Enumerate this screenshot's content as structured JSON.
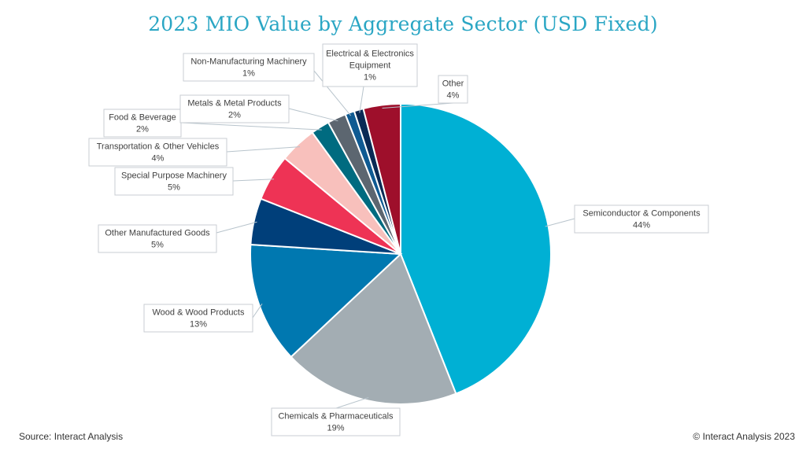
{
  "title": "2023 MIO Value by Aggregate Sector (USD Fixed)",
  "footer": {
    "source": "Source: Interact Analysis",
    "copyright": "© Interact Analysis 2023"
  },
  "chart_data": {
    "type": "pie",
    "start_angle_deg": 0,
    "direction": "clockwise",
    "slices": [
      {
        "name": "Semiconductor & Components",
        "value": 44,
        "label": "44%",
        "color": "#00b0d4"
      },
      {
        "name": "Chemicals & Pharmaceuticals",
        "value": 19,
        "label": "19%",
        "color": "#a3adb3"
      },
      {
        "name": "Wood & Wood Products",
        "value": 13,
        "label": "13%",
        "color": "#0078b0"
      },
      {
        "name": "Other Manufactured Goods",
        "value": 5,
        "label": "5%",
        "color": "#003f7a"
      },
      {
        "name": "Special Purpose Machinery",
        "value": 5,
        "label": "5%",
        "color": "#ee3355"
      },
      {
        "name": "Transportation & Other Vehicles",
        "value": 4,
        "label": "4%",
        "color": "#f8c0bc"
      },
      {
        "name": "Food & Beverage",
        "value": 2,
        "label": "2%",
        "color": "#006b80"
      },
      {
        "name": "Metals & Metal Products",
        "value": 2,
        "label": "2%",
        "color": "#5c6670"
      },
      {
        "name": "Non-Manufacturing Machinery",
        "value": 1,
        "label": "1%",
        "color": "#0f5a92"
      },
      {
        "name": "Electrical & Electronics Equipment",
        "value": 1,
        "label": "1%",
        "color": "#0a2a55"
      },
      {
        "name": "Other",
        "value": 4,
        "label": "4%",
        "color": "#9e0f2b"
      }
    ]
  }
}
